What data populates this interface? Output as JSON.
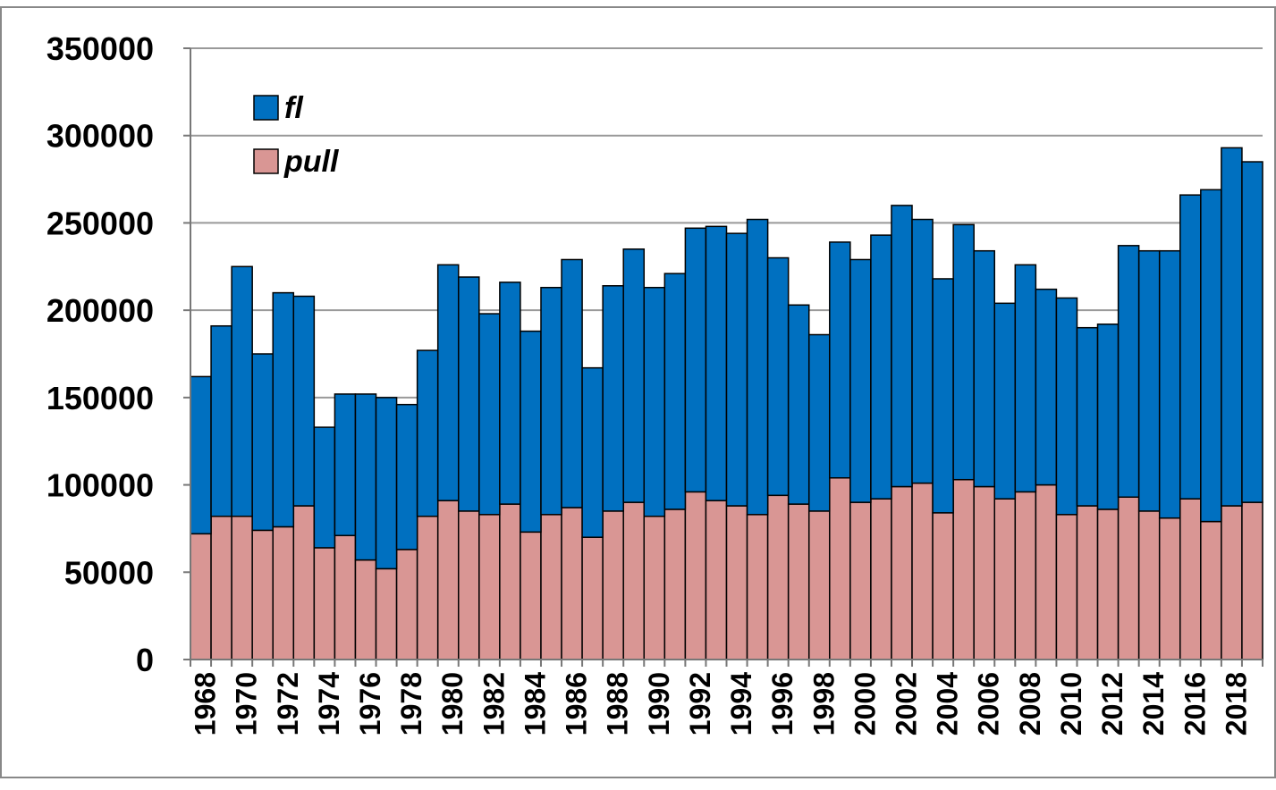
{
  "chart_data": {
    "type": "stacked_bar",
    "categories": [
      "1968",
      null,
      "1970",
      null,
      "1972",
      null,
      "1974",
      null,
      "1976",
      null,
      "1978",
      null,
      "1980",
      null,
      "1982",
      null,
      "1984",
      null,
      "1986",
      null,
      "1988",
      null,
      "1990",
      null,
      "1992",
      null,
      "1994",
      null,
      "1996",
      null,
      "1998",
      null,
      "2000",
      null,
      "2002",
      null,
      "2004",
      null,
      "2006",
      null,
      "2008",
      null,
      "2010",
      null,
      "2012",
      null,
      "2014",
      null,
      "2016",
      null,
      "2018",
      null
    ],
    "series": [
      {
        "name": "pull",
        "color": "#d99694",
        "values": [
          72000,
          82000,
          82000,
          74000,
          76000,
          88000,
          64000,
          71000,
          57000,
          52000,
          63000,
          82000,
          91000,
          85000,
          83000,
          89000,
          73000,
          83000,
          87000,
          70000,
          85000,
          90000,
          82000,
          86000,
          96000,
          91000,
          88000,
          83000,
          94000,
          89000,
          85000,
          104000,
          90000,
          92000,
          99000,
          101000,
          84000,
          103000,
          99000,
          92000,
          96000,
          100000,
          83000,
          88000,
          86000,
          93000,
          85000,
          81000,
          92000,
          79000,
          88000,
          90000
        ]
      },
      {
        "name": "fl",
        "color": "#0070c0",
        "values": [
          90000,
          109000,
          143000,
          101000,
          134000,
          120000,
          69000,
          81000,
          95000,
          98000,
          83000,
          95000,
          135000,
          134000,
          115000,
          127000,
          115000,
          130000,
          142000,
          97000,
          129000,
          145000,
          131000,
          135000,
          151000,
          157000,
          156000,
          169000,
          136000,
          114000,
          101000,
          135000,
          139000,
          151000,
          161000,
          151000,
          134000,
          146000,
          135000,
          112000,
          130000,
          112000,
          124000,
          102000,
          106000,
          144000,
          149000,
          153000,
          174000,
          190000,
          205000,
          195000
        ]
      }
    ],
    "ylim": [
      0,
      350000
    ],
    "yticks": [
      0,
      50000,
      100000,
      150000,
      200000,
      250000,
      300000,
      350000
    ],
    "grid": true,
    "legend": "top-left"
  }
}
